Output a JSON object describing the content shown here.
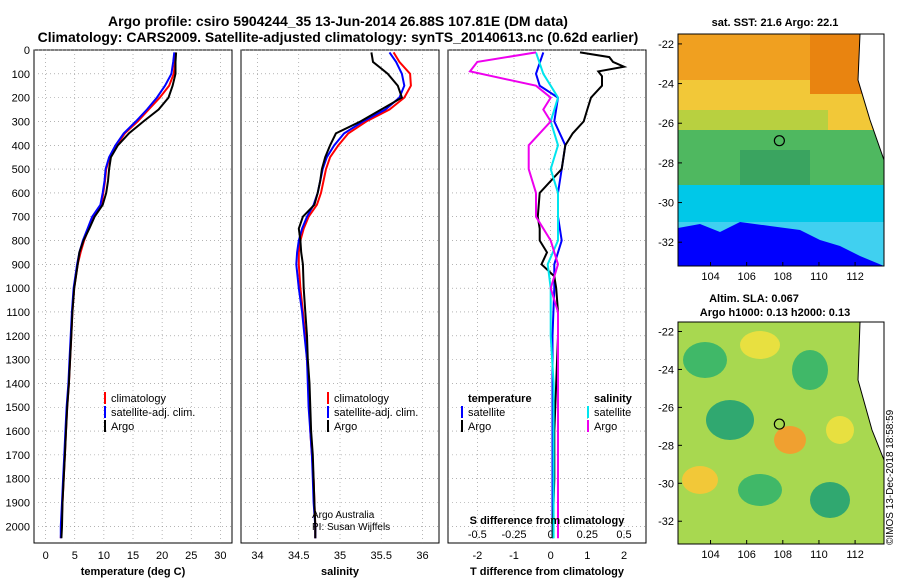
{
  "header": {
    "title_line1": "Argo profile: csiro 5904244_35 13-Jun-2014 26.88S 107.81E (DM data)",
    "title_line2": "Climatology: CARS2009. Satellite-adjusted climatology: synTS_20140613.nc (0.62d earlier)"
  },
  "colors": {
    "climatology": "#ff0000",
    "satellite": "#0000ff",
    "argo": "#000000",
    "satellite_s": "#00e5ee",
    "argo_s": "#ee00ee"
  },
  "depth_ticks": [
    "0",
    "100",
    "200",
    "300",
    "400",
    "500",
    "600",
    "700",
    "800",
    "900",
    "1000",
    "1100",
    "1200",
    "1300",
    "1400",
    "1500",
    "1600",
    "1700",
    "1800",
    "1900",
    "2000"
  ],
  "chart_data": [
    {
      "type": "line",
      "title": "",
      "xlabel": "temperature (deg C)",
      "ylabel": "depth",
      "xlim": [
        -2,
        32
      ],
      "ylim": [
        2070,
        0
      ],
      "xticks": [
        "0",
        "5",
        "10",
        "15",
        "20",
        "25",
        "30"
      ],
      "legend": [
        "climatology",
        "satellite-adj. clim.",
        "Argo"
      ],
      "legend_position": "lower-middle",
      "series": [
        {
          "name": "climatology",
          "depth": [
            10,
            50,
            100,
            150,
            200,
            250,
            300,
            350,
            400,
            450,
            500,
            550,
            600,
            650,
            700,
            750,
            800,
            850,
            900,
            1000,
            1100,
            1200,
            1300,
            1400,
            1500,
            1600,
            1700,
            1800,
            1900,
            2000,
            2050
          ],
          "values": [
            22.3,
            22.2,
            22.0,
            21.2,
            19.6,
            17.7,
            15.8,
            13.6,
            12.2,
            11.0,
            10.4,
            10.2,
            9.9,
            9.6,
            8.2,
            7.4,
            6.6,
            6.0,
            5.5,
            4.9,
            4.6,
            4.4,
            4.2,
            4.0,
            3.7,
            3.5,
            3.3,
            3.1,
            2.9,
            2.7,
            2.6
          ]
        },
        {
          "name": "satellite-adj. clim.",
          "depth": [
            10,
            50,
            100,
            150,
            200,
            250,
            300,
            350,
            400,
            450,
            500,
            550,
            600,
            650,
            700,
            750,
            800,
            850,
            900,
            1000,
            1100,
            1200,
            1300,
            1400,
            1500,
            1600,
            1700,
            1800,
            1900,
            2000,
            2050
          ],
          "values": [
            22.1,
            21.9,
            21.6,
            20.5,
            19.1,
            17.4,
            15.5,
            13.4,
            12.0,
            10.9,
            10.3,
            10.1,
            9.8,
            9.4,
            8.0,
            7.2,
            6.4,
            5.8,
            5.4,
            4.8,
            4.5,
            4.3,
            4.1,
            3.9,
            3.6,
            3.4,
            3.2,
            3.0,
            2.8,
            2.6,
            2.6
          ]
        },
        {
          "name": "Argo",
          "depth": [
            10,
            50,
            100,
            150,
            200,
            250,
            300,
            350,
            400,
            450,
            500,
            550,
            600,
            650,
            700,
            750,
            800,
            850,
            900,
            1000,
            1100,
            1200,
            1300,
            1400,
            1500,
            1600,
            1700,
            1800,
            1900,
            2000,
            2050
          ],
          "values": [
            22.4,
            22.3,
            22.3,
            21.8,
            21.1,
            19.4,
            16.8,
            14.3,
            12.4,
            11.2,
            10.9,
            10.7,
            10.4,
            9.8,
            8.4,
            7.5,
            6.5,
            5.8,
            5.5,
            4.9,
            4.6,
            4.4,
            4.2,
            4.0,
            3.7,
            3.5,
            3.3,
            3.1,
            2.9,
            2.8,
            2.7
          ]
        }
      ]
    },
    {
      "type": "line",
      "xlabel": "salinity",
      "xlim": [
        33.8,
        36.2
      ],
      "ylim": [
        2070,
        0
      ],
      "xticks": [
        "34",
        "34.5",
        "35",
        "35.5",
        "36"
      ],
      "legend": [
        "climatology",
        "satellite-adj. clim.",
        "Argo"
      ],
      "legend_position": "lower-middle",
      "annotations": [
        "Argo Australia",
        "PI: Susan Wijffels"
      ],
      "series": [
        {
          "name": "climatology",
          "depth": [
            10,
            50,
            100,
            150,
            200,
            250,
            300,
            350,
            400,
            450,
            500,
            550,
            600,
            650,
            700,
            750,
            800,
            850,
            900,
            1000,
            1100,
            1200,
            1300,
            1400,
            1500,
            1600,
            1700,
            1800,
            1900,
            2000,
            2050
          ],
          "values": [
            35.65,
            35.72,
            35.85,
            35.86,
            35.78,
            35.6,
            35.32,
            35.1,
            34.98,
            34.88,
            34.83,
            34.8,
            34.77,
            34.72,
            34.62,
            34.56,
            34.52,
            34.5,
            34.5,
            34.52,
            34.55,
            34.58,
            34.6,
            34.62,
            34.63,
            34.64,
            34.66,
            34.68,
            34.69,
            34.7,
            34.7
          ]
        },
        {
          "name": "satellite-adj. clim.",
          "depth": [
            10,
            50,
            100,
            150,
            200,
            250,
            300,
            350,
            400,
            450,
            500,
            550,
            600,
            650,
            700,
            750,
            800,
            850,
            900,
            1000,
            1100,
            1200,
            1300,
            1400,
            1500,
            1600,
            1700,
            1800,
            1900,
            2000,
            2050
          ],
          "values": [
            35.6,
            35.68,
            35.75,
            35.78,
            35.72,
            35.55,
            35.28,
            35.05,
            34.93,
            34.84,
            34.79,
            34.76,
            34.73,
            34.68,
            34.6,
            34.54,
            34.5,
            34.48,
            34.47,
            34.5,
            34.54,
            34.57,
            34.6,
            34.61,
            34.62,
            34.64,
            34.66,
            34.67,
            34.68,
            34.7,
            34.7
          ]
        },
        {
          "name": "Argo",
          "depth": [
            10,
            50,
            100,
            150,
            200,
            250,
            300,
            350,
            400,
            450,
            500,
            550,
            600,
            650,
            700,
            750,
            800,
            850,
            900,
            1000,
            1100,
            1200,
            1300,
            1400,
            1500,
            1600,
            1700,
            1800,
            1900,
            2000,
            2050
          ],
          "values": [
            35.38,
            35.4,
            35.58,
            35.7,
            35.75,
            35.5,
            35.25,
            34.95,
            34.88,
            34.82,
            34.78,
            34.76,
            34.73,
            34.69,
            34.55,
            34.5,
            34.52,
            34.53,
            34.55,
            34.56,
            34.58,
            34.6,
            34.61,
            34.63,
            34.64,
            34.65,
            34.67,
            34.68,
            34.69,
            34.7,
            34.7
          ]
        }
      ]
    },
    {
      "type": "line",
      "xlabel": "T difference from climatology",
      "xlabel_top": "S difference from climatology",
      "xlim": [
        -2.8,
        2.6
      ],
      "ylim": [
        2070,
        0
      ],
      "xticks": [
        "-2",
        "-1",
        "0",
        "1",
        "2"
      ],
      "xticks_top": [
        "-0.5",
        "-0.25",
        "0",
        "0.25",
        "0.5"
      ],
      "legend_left_title": "temperature",
      "legend_right_title": "salinity",
      "legend": [
        "satellite",
        "Argo",
        "satellite",
        "Argo"
      ],
      "series": [
        {
          "name": "T satellite",
          "depth": [
            10,
            100,
            150,
            200,
            300,
            400,
            500,
            600,
            700,
            800,
            900,
            1000,
            1200,
            1400,
            1600,
            1800,
            2050
          ],
          "values": [
            -0.2,
            -0.4,
            -0.3,
            0.2,
            0.1,
            0.4,
            0.3,
            0.2,
            0.2,
            0.3,
            0.1,
            0.1,
            0.05,
            0.05,
            0.05,
            0.05,
            0.05
          ]
        },
        {
          "name": "T Argo",
          "depth": [
            10,
            30,
            50,
            70,
            90,
            110,
            150,
            200,
            250,
            300,
            350,
            400,
            500,
            600,
            700,
            750,
            800,
            850,
            900,
            950,
            1000,
            1100,
            1200,
            1400,
            1600,
            1800,
            2050
          ],
          "values": [
            0.8,
            1.6,
            1.7,
            2.0,
            1.3,
            1.4,
            1.4,
            1.1,
            1.0,
            0.9,
            0.6,
            0.4,
            0.3,
            -0.3,
            -0.35,
            -0.3,
            -0.3,
            -0.1,
            -0.25,
            0.1,
            0.15,
            0.2,
            0.2,
            0.15,
            0.1,
            0.1,
            0.05
          ]
        },
        {
          "name": "S satellite",
          "depth": [
            10,
            100,
            150,
            200,
            300,
            400,
            500,
            600,
            700,
            800,
            900,
            1000,
            1200,
            1400,
            1600,
            1800,
            2050
          ],
          "values": [
            -0.1,
            -0.05,
            0.0,
            0.05,
            0.0,
            0.05,
            0.0,
            0.05,
            0.05,
            0.05,
            -0.02,
            0.0,
            0.0,
            0.02,
            0.02,
            0.02,
            0.02
          ]
        },
        {
          "name": "S Argo",
          "depth": [
            10,
            50,
            90,
            150,
            200,
            250,
            300,
            400,
            500,
            600,
            700,
            800,
            900,
            1000,
            1100,
            1200,
            1400,
            1600,
            1800,
            2050
          ],
          "values": [
            -0.1,
            -0.5,
            -0.55,
            -0.1,
            0.0,
            -0.05,
            0.0,
            -0.15,
            -0.15,
            -0.1,
            -0.1,
            0.0,
            0.05,
            0.0,
            0.05,
            0.05,
            0.05,
            0.05,
            0.05,
            0.05
          ]
        }
      ]
    },
    {
      "type": "heatmap",
      "title": "sat. SST: 21.6 Argo: 22.1",
      "xticks": [
        "104",
        "106",
        "108",
        "110",
        "112"
      ],
      "yticks": [
        "-22",
        "-24",
        "-26",
        "-28",
        "-30",
        "-32"
      ],
      "xlim": [
        102.2,
        113.6
      ],
      "ylim": [
        -33.2,
        -21.5
      ],
      "marker": {
        "lon": 107.81,
        "lat": -26.88
      }
    },
    {
      "type": "heatmap",
      "title_line1": "Altim. SLA: 0.067",
      "title_line2": "Argo h1000: 0.13 h2000: 0.13",
      "xticks": [
        "104",
        "106",
        "108",
        "110",
        "112"
      ],
      "yticks": [
        "-22",
        "-24",
        "-26",
        "-28",
        "-30",
        "-32"
      ],
      "xlim": [
        102.2,
        113.6
      ],
      "ylim": [
        -33.2,
        -21.5
      ],
      "marker": {
        "lon": 107.81,
        "lat": -26.88
      }
    }
  ],
  "side_text": "©IMOS 13-Dec-2018 18:58:59"
}
